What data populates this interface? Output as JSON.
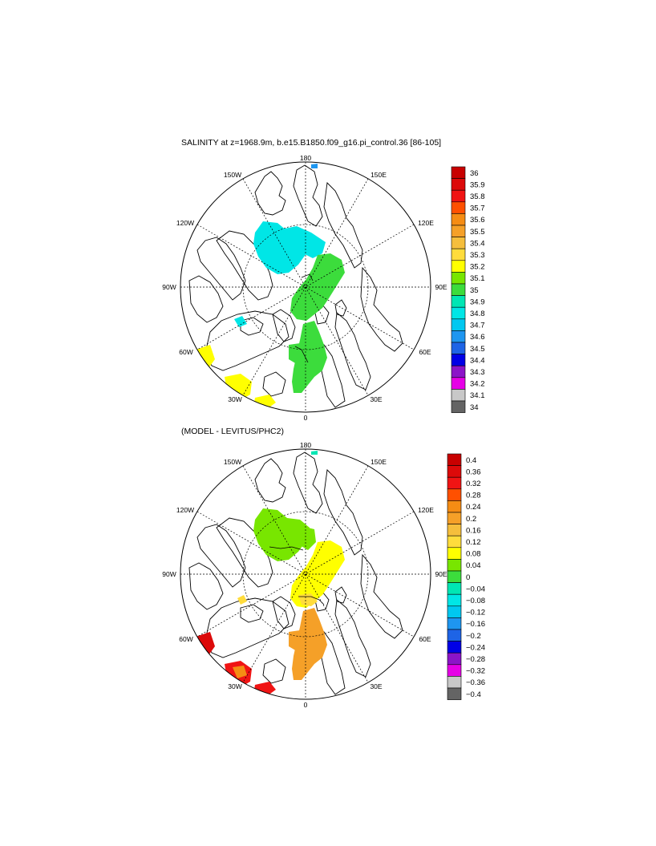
{
  "panels": [
    {
      "title": "SALINITY at z=1968.9m, b.e15.B1850.f09_g16.pi_control.36 [86-105]",
      "lon_labels": [
        "180",
        "150E",
        "120E",
        "90E",
        "60E",
        "30E",
        "0",
        "30W",
        "60W",
        "90W",
        "120W",
        "150W"
      ],
      "colorbar": {
        "labels": [
          "36",
          "35.9",
          "35.8",
          "35.7",
          "35.6",
          "35.5",
          "35.4",
          "35.3",
          "35.2",
          "35.1",
          "35",
          "34.9",
          "34.8",
          "34.7",
          "34.6",
          "34.5",
          "34.4",
          "34.3",
          "34.2",
          "34.1",
          "34"
        ],
        "colors": [
          "#c80000",
          "#dc0a0a",
          "#f01414",
          "#ff5000",
          "#f58c14",
          "#f5a028",
          "#f5be3c",
          "#ffdc3c",
          "#ffff00",
          "#78e600",
          "#3cdc3c",
          "#00e6b4",
          "#00e6e6",
          "#00c8f0",
          "#1e96f0",
          "#1e64e6",
          "#0000e6",
          "#8c14c8",
          "#e600e6",
          "#c8c8c8",
          "#646464"
        ]
      }
    },
    {
      "title": "(MODEL - LEVITUS/PHC2)",
      "lon_labels": [
        "180",
        "150E",
        "120E",
        "90E",
        "60E",
        "30E",
        "0",
        "30W",
        "60W",
        "90W",
        "120W",
        "150W"
      ],
      "colorbar": {
        "labels": [
          "0.4",
          "0.36",
          "0.32",
          "0.28",
          "0.24",
          "0.2",
          "0.16",
          "0.12",
          "0.08",
          "0.04",
          "0",
          "−0.04",
          "−0.08",
          "−0.12",
          "−0.16",
          "−0.2",
          "−0.24",
          "−0.28",
          "−0.32",
          "−0.36",
          "−0.4"
        ],
        "colors": [
          "#c80000",
          "#dc0a0a",
          "#f01414",
          "#ff5000",
          "#f58c14",
          "#f5a028",
          "#f5be3c",
          "#ffdc3c",
          "#ffff00",
          "#78e600",
          "#3cdc3c",
          "#00e6b4",
          "#00e6e6",
          "#00c8f0",
          "#1e96f0",
          "#1e64e6",
          "#0000e6",
          "#8c14c8",
          "#e600e6",
          "#c8c8c8",
          "#646464"
        ]
      }
    }
  ]
}
